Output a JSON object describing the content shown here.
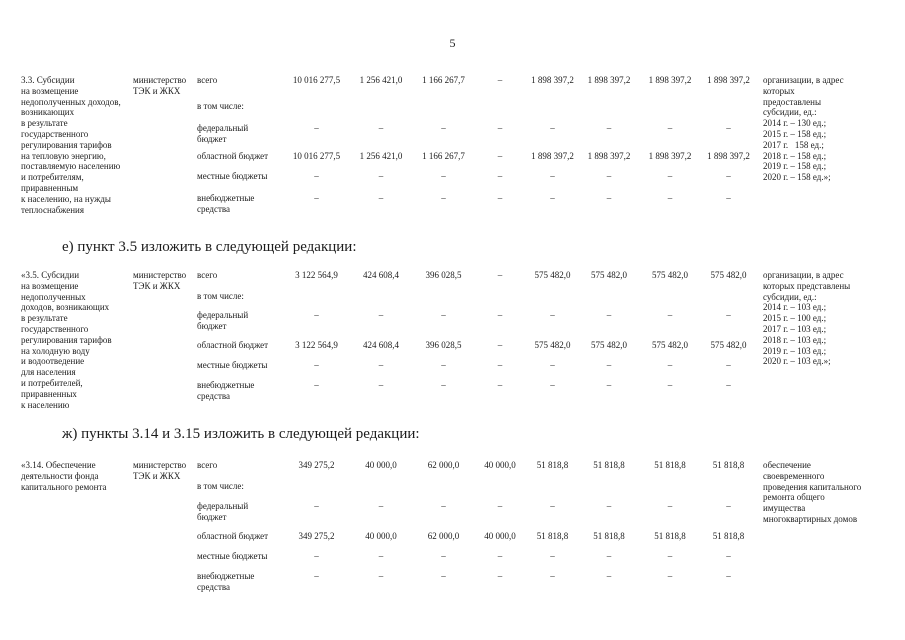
{
  "page": {
    "number": "5"
  },
  "headings": {
    "e": "е) пункт 3.5 изложить в следующей редакции:",
    "zh": "ж) пункты 3.14 и 3.15 изложить в следующей редакции:"
  },
  "sections": [
    {
      "id": "3.3",
      "title": "3.3. Субсидии\nна возмещение\nнедополученных доходов,\nвозникающих\nв результате\nгосударственного\nрегулирования тарифов\nна тепловую энергию,\nпоставляемую населению\nи потребителям,\nприравненным\nк населению, на нужды\nтеплоснабжения",
      "executor": "министерство\nТЭК и ЖКХ",
      "rows": [
        {
          "label": "всего",
          "values": [
            "10 016 277,5",
            "1 256 421,0",
            "1 166 267,7",
            "–",
            "1 898 397,2",
            "1 898 397,2",
            "1 898 397,2",
            "1 898 397,2"
          ]
        },
        {
          "label": "в том числе:",
          "values": []
        },
        {
          "label": "федеральный\nбюджет",
          "values": [
            "–",
            "–",
            "–",
            "–",
            "–",
            "–",
            "–",
            "–"
          ]
        },
        {
          "label": "областной бюджет",
          "values": [
            "10 016 277,5",
            "1 256 421,0",
            "1 166 267,7",
            "–",
            "1 898 397,2",
            "1 898 397,2",
            "1 898 397,2",
            "1 898 397,2"
          ]
        },
        {
          "label": "местные бюджеты",
          "values": [
            "–",
            "–",
            "–",
            "–",
            "–",
            "–",
            "–",
            "–"
          ]
        },
        {
          "label": "внебюджетные\nсредства",
          "values": [
            "–",
            "–",
            "–",
            "–",
            "–",
            "–",
            "–",
            "–"
          ]
        }
      ],
      "note": "организации, в адрес\nкоторых\nпредоставлены\nсубсидии, ед.:\n2014 г. – 130 ед.;\n2015 г. – 158 ед.;\n2017 г.   158 ед.;\n2018 г. – 158 ед.;\n2019 г. – 158 ед.;\n2020 г. – 158 ед.»;"
    },
    {
      "id": "3.5",
      "title": "«3.5. Субсидии\nна возмещение\nнедополученных\nдоходов, возникающих\nв результате\nгосударственного\nрегулирования тарифов\nна холодную воду\nи водоотведение\nдля населения\nи потребителей,\nприравненных\nк населению",
      "executor": "министерство\nТЭК и ЖКХ",
      "rows": [
        {
          "label": "всего",
          "values": [
            "3 122 564,9",
            "424 608,4",
            "396 028,5",
            "–",
            "575 482,0",
            "575 482,0",
            "575 482,0",
            "575 482,0"
          ]
        },
        {
          "label": "в том числе:",
          "values": []
        },
        {
          "label": "федеральный\nбюджет",
          "values": [
            "–",
            "–",
            "–",
            "–",
            "–",
            "–",
            "–",
            "–"
          ]
        },
        {
          "label": "областной бюджет",
          "values": [
            "3 122 564,9",
            "424 608,4",
            "396 028,5",
            "–",
            "575 482,0",
            "575 482,0",
            "575 482,0",
            "575 482,0"
          ]
        },
        {
          "label": "местные бюджеты",
          "values": [
            "–",
            "–",
            "–",
            "–",
            "–",
            "–",
            "–",
            "–"
          ]
        },
        {
          "label": "внебюджетные\nсредства",
          "values": [
            "–",
            "–",
            "–",
            "–",
            "–",
            "–",
            "–",
            "–"
          ]
        }
      ],
      "note": "организации, в адрес\nкоторых представлены\nсубсидии, ед.:\n2014 г. – 103 ед.;\n2015 г. – 100 ед.;\n2017 г. – 103 ед.;\n2018 г. – 103 ед.;\n2019 г. – 103 ед.;\n2020 г. – 103 ед.»;"
    },
    {
      "id": "3.14",
      "title": "«3.14. Обеспечение\nдеятельности фонда\nкапитального ремонта",
      "executor": "министерство\nТЭК и ЖКХ",
      "rows": [
        {
          "label": "всего",
          "values": [
            "349 275,2",
            "40 000,0",
            "62 000,0",
            "40 000,0",
            "51 818,8",
            "51 818,8",
            "51 818,8",
            "51 818,8"
          ]
        },
        {
          "label": "в том числе:",
          "values": []
        },
        {
          "label": "федеральный\nбюджет",
          "values": [
            "–",
            "–",
            "–",
            "–",
            "–",
            "–",
            "–",
            "–"
          ]
        },
        {
          "label": "областной бюджет",
          "values": [
            "349 275,2",
            "40 000,0",
            "62 000,0",
            "40 000,0",
            "51 818,8",
            "51 818,8",
            "51 818,8",
            "51 818,8"
          ]
        },
        {
          "label": "местные бюджеты",
          "values": [
            "–",
            "–",
            "–",
            "–",
            "–",
            "–",
            "–",
            "–"
          ]
        },
        {
          "label": "внебюджетные\nсредства",
          "values": [
            "–",
            "–",
            "–",
            "–",
            "–",
            "–",
            "–",
            "–"
          ]
        }
      ],
      "note": "обеспечение\nсвоевременного\nпроведения капитального\nремонта общего\nимущества\nмногоквартирных домов"
    }
  ]
}
